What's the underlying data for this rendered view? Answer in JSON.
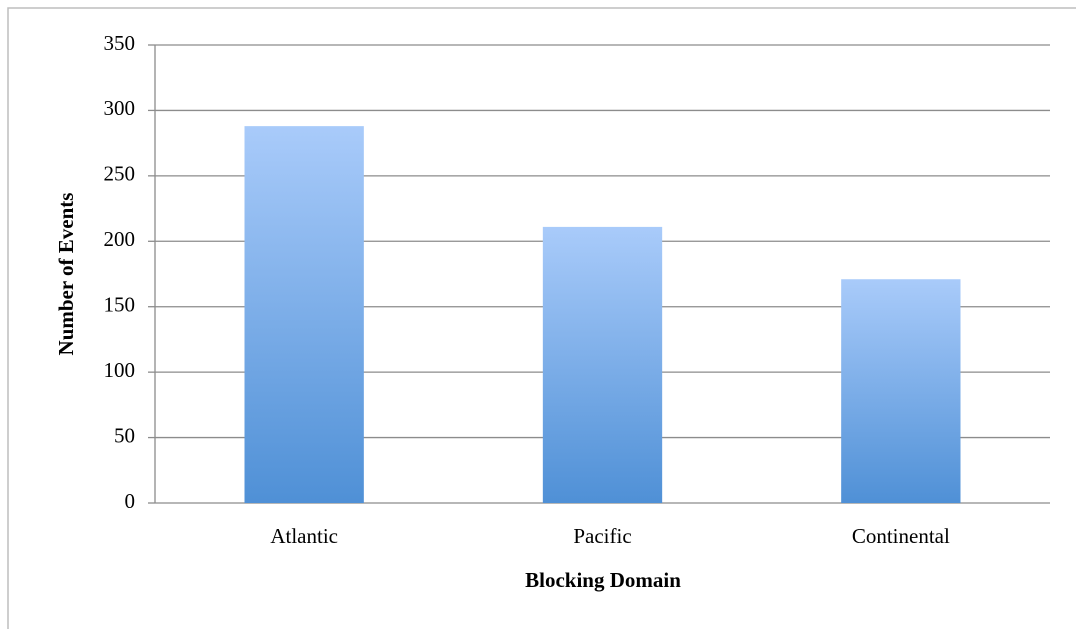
{
  "chart_data": {
    "type": "bar",
    "x_label": "Blocking Domain",
    "y_label": "Number of Events",
    "categories": [
      "Atlantic",
      "Pacific",
      "Continental"
    ],
    "values": [
      288,
      211,
      171
    ],
    "color": "#4f90d6",
    "ylim": [
      0,
      350
    ],
    "yticks": [
      0,
      50,
      100,
      150,
      200,
      250,
      300,
      350
    ],
    "grid": true
  }
}
